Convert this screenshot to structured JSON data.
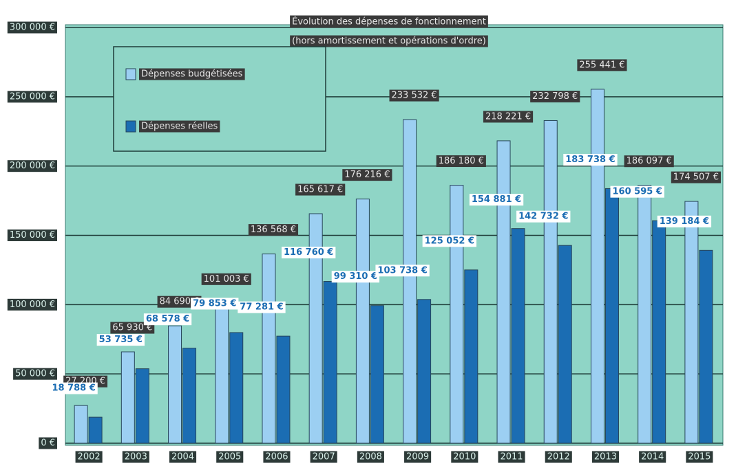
{
  "chart_data": {
    "type": "bar",
    "title": "Évolution des dépenses de fonctionnement",
    "subtitle": "(hors amortissement et opérations d'ordre)",
    "categories": [
      "2002",
      "2003",
      "2004",
      "2005",
      "2006",
      "2007",
      "2008",
      "2009",
      "2010",
      "2011",
      "2012",
      "2013",
      "2014",
      "2015"
    ],
    "series": [
      {
        "name": "Dépenses budgétisées",
        "color": "#9ccff2",
        "values": [
          27200,
          65930,
          84690,
          101003,
          136568,
          165617,
          176216,
          233532,
          186180,
          218221,
          232798,
          255441,
          186097,
          174507
        ],
        "value_labels": [
          "27 200 €",
          "65 930 €",
          "84 690 €",
          "101 003 €",
          "136 568 €",
          "165 617 €",
          "176 216 €",
          "233 532 €",
          "186 180 €",
          "218 221 €",
          "232 798 €",
          "255 441 €",
          "186 097 €",
          "174 507 €"
        ]
      },
      {
        "name": "Dépenses réelles",
        "color": "#1b6db3",
        "values": [
          18788,
          53735,
          68578,
          79853,
          77281,
          116760,
          99310,
          103738,
          125052,
          154881,
          142732,
          183738,
          160595,
          139184
        ],
        "value_labels": [
          "18 788 €",
          "53 735 €",
          "68 578 €",
          "79 853 €",
          "77 281 €",
          "116 760 €",
          "99 310 €",
          "103 738 €",
          "125 052 €",
          "154 881 €",
          "142 732 €",
          "183 738 €",
          "160 595 €",
          "139 184 €"
        ]
      }
    ],
    "ylim": [
      0,
      300000
    ],
    "yticks": [
      {
        "value": 0,
        "label": "0 €"
      },
      {
        "value": 50000,
        "label": "50 000 €"
      },
      {
        "value": 100000,
        "label": "100 000 €"
      },
      {
        "value": 150000,
        "label": "150 000 €"
      },
      {
        "value": 200000,
        "label": "200 000 €"
      },
      {
        "value": 250000,
        "label": "250 000 €"
      },
      {
        "value": 300000,
        "label": "300 000 €"
      }
    ],
    "grid": true,
    "legend": "top-left"
  }
}
